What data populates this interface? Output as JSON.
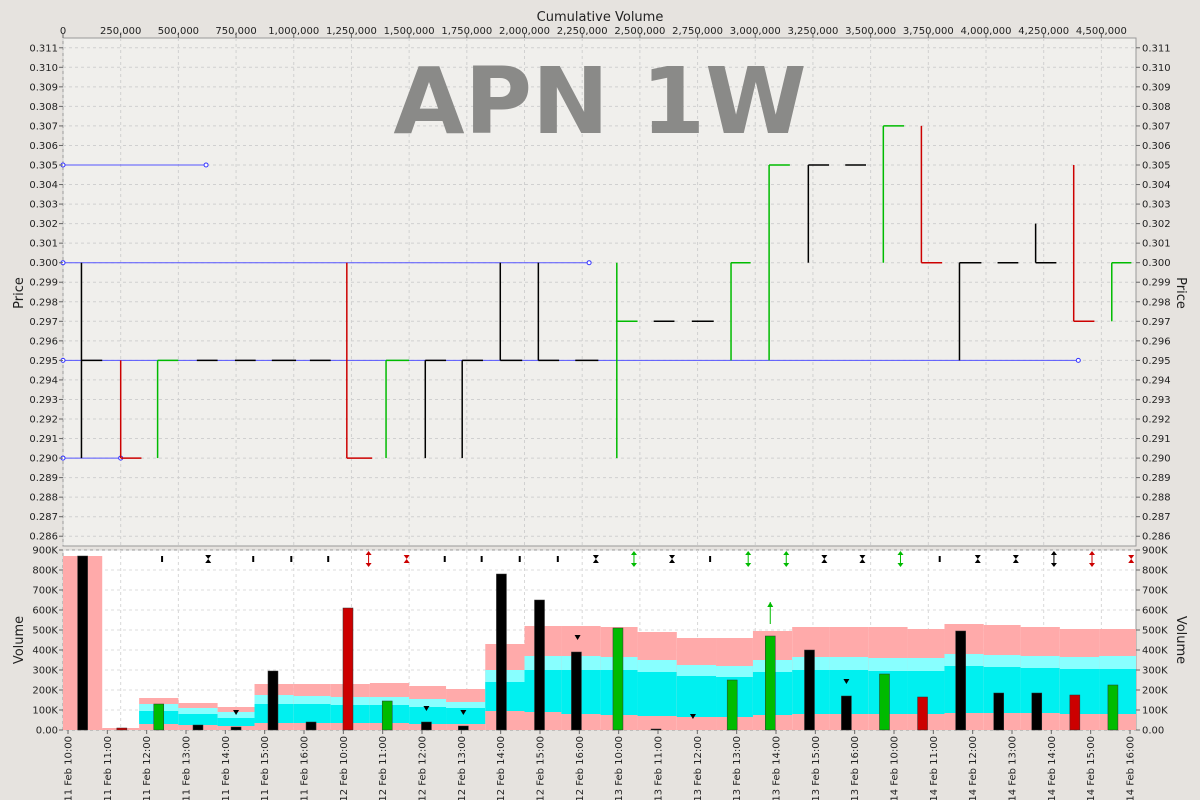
{
  "chart_data": {
    "type": "bar",
    "watermark": "APN 1W",
    "top_axis_label": "Cumulative Volume",
    "x_ticks": [
      "0",
      "250,000",
      "500,000",
      "750,000",
      "1,000,000",
      "1,250,000",
      "1,500,000",
      "1,750,000",
      "2,000,000",
      "2,250,000",
      "2,500,000",
      "2,750,000",
      "3,000,000",
      "3,250,000",
      "3,500,000",
      "3,750,000",
      "4,000,000",
      "4,250,000",
      "4,500,000"
    ],
    "x_range": [
      0,
      4650000
    ],
    "price_axis": {
      "label": "Price",
      "range": [
        0.2855,
        0.3115
      ],
      "ticks": [
        "0.286",
        "0.287",
        "0.288",
        "0.289",
        "0.290",
        "0.291",
        "0.292",
        "0.293",
        "0.294",
        "0.295",
        "0.296",
        "0.297",
        "0.298",
        "0.299",
        "0.300",
        "0.301",
        "0.302",
        "0.303",
        "0.304",
        "0.305",
        "0.306",
        "0.307",
        "0.308",
        "0.309",
        "0.310",
        "0.311"
      ]
    },
    "volume_axis": {
      "label": "Volume",
      "range": [
        0,
        900000
      ],
      "ticks": [
        "0.00",
        "100K",
        "200K",
        "300K",
        "400K",
        "500K",
        "600K",
        "700K",
        "800K",
        "900K"
      ]
    },
    "time_labels": [
      "11 Feb 10:00",
      "11 Feb 11:00",
      "11 Feb 12:00",
      "11 Feb 13:00",
      "11 Feb 14:00",
      "11 Feb 15:00",
      "11 Feb 16:00",
      "12 Feb 10:00",
      "12 Feb 11:00",
      "12 Feb 12:00",
      "12 Feb 13:00",
      "12 Feb 14:00",
      "12 Feb 15:00",
      "12 Feb 16:00",
      "13 Feb 10:00",
      "13 Feb 11:00",
      "13 Feb 12:00",
      "13 Feb 13:00",
      "13 Feb 14:00",
      "13 Feb 15:00",
      "13 Feb 16:00",
      "14 Feb 10:00",
      "14 Feb 11:00",
      "14 Feb 12:00",
      "14 Feb 13:00",
      "14 Feb 14:00",
      "14 Feb 15:00",
      "14 Feb 16:00"
    ],
    "price_bars": [
      {
        "v0": 80000,
        "v1": 170000,
        "high": 0.3,
        "low": 0.29,
        "close": 0.295,
        "color": "#000000"
      },
      {
        "v0": 250000,
        "v1": 340000,
        "high": 0.295,
        "low": 0.29,
        "close": 0.29,
        "color": "#cc0000"
      },
      {
        "v0": 410000,
        "v1": 500000,
        "high": 0.295,
        "low": 0.29,
        "close": 0.295,
        "color": "#00bb00"
      },
      {
        "v0": 580000,
        "v1": 670000,
        "high": 0.295,
        "low": 0.295,
        "close": 0.295,
        "color": "#000000"
      },
      {
        "v0": 745000,
        "v1": 835000,
        "high": 0.295,
        "low": 0.295,
        "close": 0.295,
        "color": "#000000"
      },
      {
        "v0": 905000,
        "v1": 1010000,
        "high": 0.295,
        "low": 0.295,
        "close": 0.295,
        "color": "#000000"
      },
      {
        "v0": 1070000,
        "v1": 1160000,
        "high": 0.295,
        "low": 0.295,
        "close": 0.295,
        "color": "#000000"
      },
      {
        "v0": 1230000,
        "v1": 1340000,
        "high": 0.3,
        "low": 0.29,
        "close": 0.29,
        "color": "#cc0000"
      },
      {
        "v0": 1400000,
        "v1": 1500000,
        "high": 0.295,
        "low": 0.29,
        "close": 0.295,
        "color": "#00bb00"
      },
      {
        "v0": 1570000,
        "v1": 1660000,
        "high": 0.295,
        "low": 0.29,
        "close": 0.295,
        "color": "#000000"
      },
      {
        "v0": 1730000,
        "v1": 1820000,
        "high": 0.295,
        "low": 0.29,
        "close": 0.295,
        "color": "#000000"
      },
      {
        "v0": 1895000,
        "v1": 1990000,
        "high": 0.3,
        "low": 0.295,
        "close": 0.295,
        "color": "#000000"
      },
      {
        "v0": 2060000,
        "v1": 2150000,
        "high": 0.3,
        "low": 0.295,
        "close": 0.295,
        "color": "#000000"
      },
      {
        "v0": 2220000,
        "v1": 2320000,
        "high": 0.295,
        "low": 0.295,
        "close": 0.295,
        "color": "#000000"
      },
      {
        "v0": 2400000,
        "v1": 2490000,
        "high": 0.3,
        "low": 0.29,
        "close": 0.297,
        "color": "#00bb00"
      },
      {
        "v0": 2560000,
        "v1": 2650000,
        "high": 0.297,
        "low": 0.297,
        "close": 0.297,
        "color": "#000000"
      },
      {
        "v0": 2725000,
        "v1": 2820000,
        "high": 0.297,
        "low": 0.297,
        "close": 0.297,
        "color": "#000000"
      },
      {
        "v0": 2895000,
        "v1": 2980000,
        "high": 0.3,
        "low": 0.295,
        "close": 0.3,
        "color": "#00bb00"
      },
      {
        "v0": 3060000,
        "v1": 3150000,
        "high": 0.305,
        "low": 0.295,
        "close": 0.305,
        "color": "#00bb00"
      },
      {
        "v0": 3230000,
        "v1": 3320000,
        "high": 0.305,
        "low": 0.3,
        "close": 0.305,
        "color": "#000000"
      },
      {
        "v0": 3390000,
        "v1": 3480000,
        "high": 0.305,
        "low": 0.305,
        "close": 0.305,
        "color": "#000000"
      },
      {
        "v0": 3555000,
        "v1": 3645000,
        "high": 0.307,
        "low": 0.3,
        "close": 0.307,
        "color": "#00bb00"
      },
      {
        "v0": 3720000,
        "v1": 3810000,
        "high": 0.307,
        "low": 0.3,
        "close": 0.3,
        "color": "#cc0000"
      },
      {
        "v0": 3885000,
        "v1": 3980000,
        "high": 0.3,
        "low": 0.295,
        "close": 0.3,
        "color": "#000000"
      },
      {
        "v0": 4050000,
        "v1": 4140000,
        "high": 0.3,
        "low": 0.3,
        "close": 0.3,
        "color": "#000000"
      },
      {
        "v0": 4215000,
        "v1": 4305000,
        "high": 0.302,
        "low": 0.3,
        "close": 0.3,
        "color": "#000000"
      },
      {
        "v0": 4380000,
        "v1": 4470000,
        "high": 0.305,
        "low": 0.297,
        "close": 0.297,
        "color": "#cc0000"
      },
      {
        "v0": 4545000,
        "v1": 4630000,
        "high": 0.3,
        "low": 0.297,
        "close": 0.3,
        "color": "#00bb00"
      }
    ],
    "price_lines": [
      {
        "price": 0.305,
        "from": 0,
        "to": 620000
      },
      {
        "price": 0.3,
        "from": 0,
        "to": 2280000
      },
      {
        "price": 0.295,
        "from": 0,
        "to": 4400000
      },
      {
        "price": 0.29,
        "from": 0,
        "to": 250000
      }
    ],
    "volume_bars": [
      {
        "v": 85000,
        "volume": 870000,
        "color": "#000000"
      },
      {
        "v": 255000,
        "volume": 10000,
        "color": "#cc0000"
      },
      {
        "v": 415000,
        "volume": 130000,
        "color": "#00bb00"
      },
      {
        "v": 585000,
        "volume": 25000,
        "color": "#000000"
      },
      {
        "v": 750000,
        "volume": 15000,
        "color": "#000000"
      },
      {
        "v": 910000,
        "volume": 295000,
        "color": "#000000"
      },
      {
        "v": 1075000,
        "volume": 40000,
        "color": "#000000"
      },
      {
        "v": 1235000,
        "volume": 610000,
        "color": "#cc0000"
      },
      {
        "v": 1405000,
        "volume": 145000,
        "color": "#00bb00"
      },
      {
        "v": 1575000,
        "volume": 40000,
        "color": "#000000"
      },
      {
        "v": 1735000,
        "volume": 20000,
        "color": "#000000"
      },
      {
        "v": 1900000,
        "volume": 780000,
        "color": "#000000"
      },
      {
        "v": 2065000,
        "volume": 650000,
        "color": "#000000"
      },
      {
        "v": 2225000,
        "volume": 390000,
        "color": "#000000"
      },
      {
        "v": 2405000,
        "volume": 510000,
        "color": "#00bb00"
      },
      {
        "v": 2570000,
        "volume": 5000,
        "color": "#000000"
      },
      {
        "v": 2730000,
        "volume": 0,
        "color": "#000000"
      },
      {
        "v": 2900000,
        "volume": 250000,
        "color": "#00bb00"
      },
      {
        "v": 3065000,
        "volume": 470000,
        "color": "#00bb00"
      },
      {
        "v": 3235000,
        "volume": 400000,
        "color": "#000000"
      },
      {
        "v": 3395000,
        "volume": 170000,
        "color": "#000000"
      },
      {
        "v": 3560000,
        "volume": 280000,
        "color": "#00bb00"
      },
      {
        "v": 3725000,
        "volume": 165000,
        "color": "#cc0000"
      },
      {
        "v": 3890000,
        "volume": 495000,
        "color": "#000000"
      },
      {
        "v": 4055000,
        "volume": 185000,
        "color": "#000000"
      },
      {
        "v": 4220000,
        "volume": 185000,
        "color": "#000000"
      },
      {
        "v": 4385000,
        "volume": 175000,
        "color": "#cc0000"
      },
      {
        "v": 4550000,
        "volume": 225000,
        "color": "#00bb00"
      }
    ],
    "volume_bands": [
      {
        "v0": 0,
        "v1": 170000,
        "pink_top": 870000,
        "cyan_top": 0,
        "cyan_light_top": 0,
        "low_pink": 0
      },
      {
        "v0": 170000,
        "v1": 330000,
        "pink_top": 10000,
        "cyan_top": 0,
        "cyan_light_top": 0,
        "low_pink": 0
      },
      {
        "v0": 330000,
        "v1": 500000,
        "pink_top": 160000,
        "cyan_top": 130000,
        "cyan_light_top": 95000,
        "low_pink": 30000
      },
      {
        "v0": 500000,
        "v1": 670000,
        "pink_top": 135000,
        "cyan_top": 110000,
        "cyan_light_top": 80000,
        "low_pink": 25000
      },
      {
        "v0": 670000,
        "v1": 830000,
        "pink_top": 115000,
        "cyan_top": 90000,
        "cyan_light_top": 60000,
        "low_pink": 20000
      },
      {
        "v0": 830000,
        "v1": 1000000,
        "pink_top": 230000,
        "cyan_top": 175000,
        "cyan_light_top": 130000,
        "low_pink": 35000
      },
      {
        "v0": 1000000,
        "v1": 1160000,
        "pink_top": 230000,
        "cyan_top": 170000,
        "cyan_light_top": 130000,
        "low_pink": 35000
      },
      {
        "v0": 1160000,
        "v1": 1330000,
        "pink_top": 230000,
        "cyan_top": 165000,
        "cyan_light_top": 125000,
        "low_pink": 35000
      },
      {
        "v0": 1330000,
        "v1": 1500000,
        "pink_top": 235000,
        "cyan_top": 165000,
        "cyan_light_top": 125000,
        "low_pink": 35000
      },
      {
        "v0": 1500000,
        "v1": 1660000,
        "pink_top": 220000,
        "cyan_top": 155000,
        "cyan_light_top": 115000,
        "low_pink": 30000
      },
      {
        "v0": 1660000,
        "v1": 1830000,
        "pink_top": 205000,
        "cyan_top": 140000,
        "cyan_light_top": 110000,
        "low_pink": 30000
      },
      {
        "v0": 1830000,
        "v1": 2000000,
        "pink_top": 430000,
        "cyan_top": 300000,
        "cyan_light_top": 240000,
        "low_pink": 95000
      },
      {
        "v0": 2000000,
        "v1": 2160000,
        "pink_top": 520000,
        "cyan_top": 370000,
        "cyan_light_top": 300000,
        "low_pink": 90000
      },
      {
        "v0": 2160000,
        "v1": 2330000,
        "pink_top": 520000,
        "cyan_top": 370000,
        "cyan_light_top": 300000,
        "low_pink": 80000
      },
      {
        "v0": 2330000,
        "v1": 2490000,
        "pink_top": 515000,
        "cyan_top": 365000,
        "cyan_light_top": 300000,
        "low_pink": 75000
      },
      {
        "v0": 2490000,
        "v1": 2660000,
        "pink_top": 490000,
        "cyan_top": 350000,
        "cyan_light_top": 290000,
        "low_pink": 70000
      },
      {
        "v0": 2660000,
        "v1": 2830000,
        "pink_top": 460000,
        "cyan_top": 325000,
        "cyan_light_top": 270000,
        "low_pink": 65000
      },
      {
        "v0": 2830000,
        "v1": 2990000,
        "pink_top": 460000,
        "cyan_top": 320000,
        "cyan_light_top": 265000,
        "low_pink": 65000
      },
      {
        "v0": 2990000,
        "v1": 3160000,
        "pink_top": 495000,
        "cyan_top": 350000,
        "cyan_light_top": 290000,
        "low_pink": 75000
      },
      {
        "v0": 3160000,
        "v1": 3320000,
        "pink_top": 515000,
        "cyan_top": 365000,
        "cyan_light_top": 300000,
        "low_pink": 80000
      },
      {
        "v0": 3320000,
        "v1": 3490000,
        "pink_top": 515000,
        "cyan_top": 365000,
        "cyan_light_top": 300000,
        "low_pink": 80000
      },
      {
        "v0": 3490000,
        "v1": 3660000,
        "pink_top": 515000,
        "cyan_top": 360000,
        "cyan_light_top": 295000,
        "low_pink": 80000
      },
      {
        "v0": 3660000,
        "v1": 3820000,
        "pink_top": 505000,
        "cyan_top": 360000,
        "cyan_light_top": 295000,
        "low_pink": 80000
      },
      {
        "v0": 3820000,
        "v1": 3990000,
        "pink_top": 530000,
        "cyan_top": 380000,
        "cyan_light_top": 320000,
        "low_pink": 85000
      },
      {
        "v0": 3990000,
        "v1": 4150000,
        "pink_top": 525000,
        "cyan_top": 375000,
        "cyan_light_top": 315000,
        "low_pink": 85000
      },
      {
        "v0": 4150000,
        "v1": 4320000,
        "pink_top": 515000,
        "cyan_top": 370000,
        "cyan_light_top": 310000,
        "low_pink": 85000
      },
      {
        "v0": 4320000,
        "v1": 4490000,
        "pink_top": 505000,
        "cyan_top": 365000,
        "cyan_light_top": 305000,
        "low_pink": 80000
      },
      {
        "v0": 4490000,
        "v1": 4650000,
        "pink_top": 505000,
        "cyan_top": 370000,
        "cyan_light_top": 305000,
        "low_pink": 80000
      }
    ],
    "markers": [
      {
        "v": 2230000,
        "volume": 460000,
        "dir": "down",
        "color": "#000000"
      },
      {
        "v": 3065000,
        "volume": 640000,
        "dir": "up",
        "color": "#00bb00"
      },
      {
        "v": 2730000,
        "volume": 65000,
        "dir": "down",
        "color": "#000000"
      },
      {
        "v": 3395000,
        "volume": 240000,
        "dir": "down",
        "color": "#000000"
      },
      {
        "v": 1575000,
        "volume": 105000,
        "dir": "down",
        "color": "#000000"
      },
      {
        "v": 1735000,
        "volume": 85000,
        "dir": "down",
        "color": "#000000"
      },
      {
        "v": 750000,
        "volume": 85000,
        "dir": "down",
        "color": "#000000"
      }
    ],
    "top_markers": [
      {
        "v": 490000,
        "kind": "tick",
        "color": "#000000"
      },
      {
        "v": 690000,
        "kind": "hourglass",
        "color": "#000000"
      },
      {
        "v": 885000,
        "kind": "tick",
        "color": "#000000"
      },
      {
        "v": 1050000,
        "kind": "tick",
        "color": "#000000"
      },
      {
        "v": 1210000,
        "kind": "tick",
        "color": "#000000"
      },
      {
        "v": 1385000,
        "kind": "updown",
        "color": "#cc0000"
      },
      {
        "v": 1550000,
        "kind": "hourglass",
        "color": "#cc0000"
      },
      {
        "v": 1715000,
        "kind": "tick",
        "color": "#000000"
      },
      {
        "v": 1875000,
        "kind": "tick",
        "color": "#000000"
      },
      {
        "v": 2040000,
        "kind": "tick",
        "color": "#000000"
      },
      {
        "v": 2205000,
        "kind": "tick",
        "color": "#000000"
      },
      {
        "v": 2370000,
        "kind": "hourglass",
        "color": "#000000"
      },
      {
        "v": 2535000,
        "kind": "updown",
        "color": "#00bb00"
      },
      {
        "v": 2700000,
        "kind": "hourglass",
        "color": "#000000"
      },
      {
        "v": 2865000,
        "kind": "tick",
        "color": "#000000"
      },
      {
        "v": 3030000,
        "kind": "updown",
        "color": "#00bb00"
      },
      {
        "v": 3195000,
        "kind": "updown",
        "color": "#00bb00"
      },
      {
        "v": 3360000,
        "kind": "hourglass",
        "color": "#000000"
      },
      {
        "v": 3525000,
        "kind": "hourglass",
        "color": "#000000"
      },
      {
        "v": 3690000,
        "kind": "updown",
        "color": "#00bb00"
      },
      {
        "v": 3860000,
        "kind": "tick",
        "color": "#000000"
      },
      {
        "v": 4025000,
        "kind": "hourglass",
        "color": "#000000"
      },
      {
        "v": 4190000,
        "kind": "hourglass",
        "color": "#000000"
      },
      {
        "v": 4355000,
        "kind": "updown",
        "color": "#000000"
      },
      {
        "v": 4520000,
        "kind": "updown",
        "color": "#cc0000"
      },
      {
        "v": 4690000,
        "kind": "hourglass",
        "color": "#cc0000"
      }
    ],
    "grid": true
  }
}
